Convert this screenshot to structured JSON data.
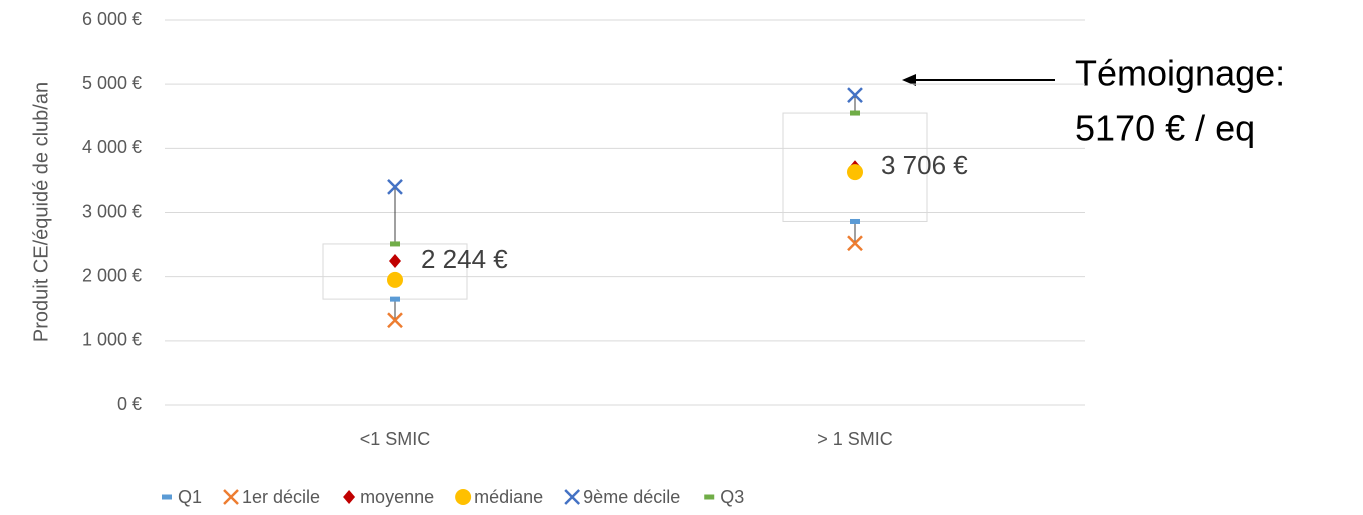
{
  "chart_data": {
    "type": "box",
    "y_label": "Produit CE/équidé de club/an",
    "categories": [
      "<1 SMIC",
      "> 1 SMIC"
    ],
    "ylim": [
      0,
      6000
    ],
    "yticks": [
      {
        "value": 0,
        "label": "0 €"
      },
      {
        "value": 1000,
        "label": "1 000 €"
      },
      {
        "value": 2000,
        "label": "2 000 €"
      },
      {
        "value": 3000,
        "label": "3 000 €"
      },
      {
        "value": 4000,
        "label": "4 000 €"
      },
      {
        "value": 5000,
        "label": "5 000 €"
      },
      {
        "value": 6000,
        "label": "6 000 €"
      }
    ],
    "grid": true,
    "legend": "bottom",
    "series": [
      {
        "name": "Q1",
        "color": "#5b9bd5",
        "marker": "dash",
        "values": [
          1650,
          2860
        ]
      },
      {
        "name": "1er décile",
        "color": "#ed7d31",
        "marker": "x",
        "values": [
          1320,
          2520
        ]
      },
      {
        "name": "moyenne",
        "color": "#c00000",
        "marker": "diamond",
        "values": [
          2244,
          3706
        ],
        "value_labels": [
          "2 244 €",
          "3 706 €"
        ]
      },
      {
        "name": "médiane",
        "color": "#ffc000",
        "marker": "circle",
        "values": [
          1950,
          3630
        ]
      },
      {
        "name": "9ème décile",
        "color": "#4472c4",
        "marker": "x",
        "values": [
          3400,
          4830
        ]
      },
      {
        "name": "Q3",
        "color": "#70ad47",
        "marker": "dash",
        "values": [
          2510,
          4550
        ]
      }
    ],
    "annotation": [
      "Témoignage:",
      "5170 € / eq"
    ]
  }
}
